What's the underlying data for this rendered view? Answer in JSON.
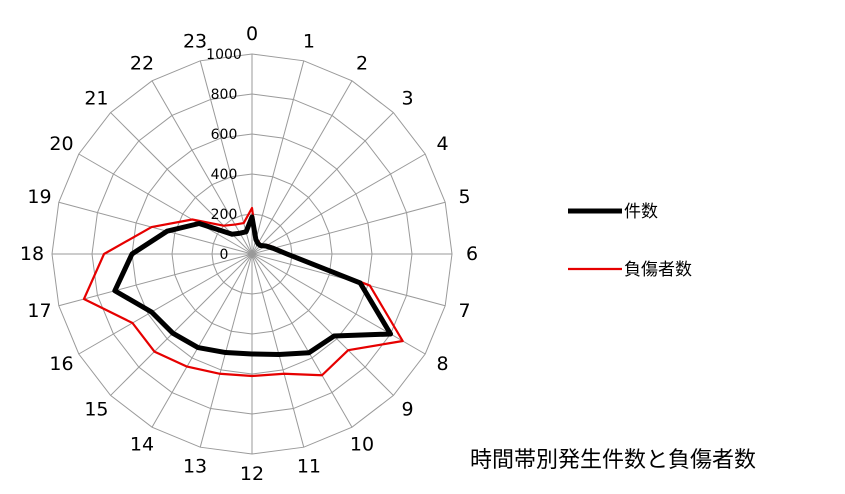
{
  "chart_data": {
    "type": "radar",
    "title": "時間帯別発生件数と負傷者数",
    "categories": [
      "0",
      "1",
      "2",
      "3",
      "4",
      "5",
      "6",
      "7",
      "8",
      "9",
      "10",
      "11",
      "12",
      "13",
      "14",
      "15",
      "16",
      "17",
      "18",
      "19",
      "20",
      "21",
      "22",
      "23"
    ],
    "rlim": [
      0,
      1000
    ],
    "rticks": [
      "0",
      "200",
      "400",
      "600",
      "800",
      "1000"
    ],
    "grid": true,
    "legend_position": "right",
    "series": [
      {
        "name": "件数",
        "color": "#000000",
        "values": [
          185,
          75,
          60,
          60,
          80,
          110,
          175,
          560,
          800,
          580,
          570,
          520,
          500,
          510,
          540,
          560,
          580,
          710,
          600,
          440,
          305,
          140,
          120,
          115
        ]
      },
      {
        "name": "負傷者数",
        "color": "#e60000",
        "values": [
          230,
          80,
          70,
          60,
          90,
          120,
          185,
          610,
          870,
          680,
          700,
          620,
          610,
          620,
          650,
          690,
          690,
          870,
          740,
          520,
          345,
          200,
          170,
          160
        ]
      }
    ]
  }
}
